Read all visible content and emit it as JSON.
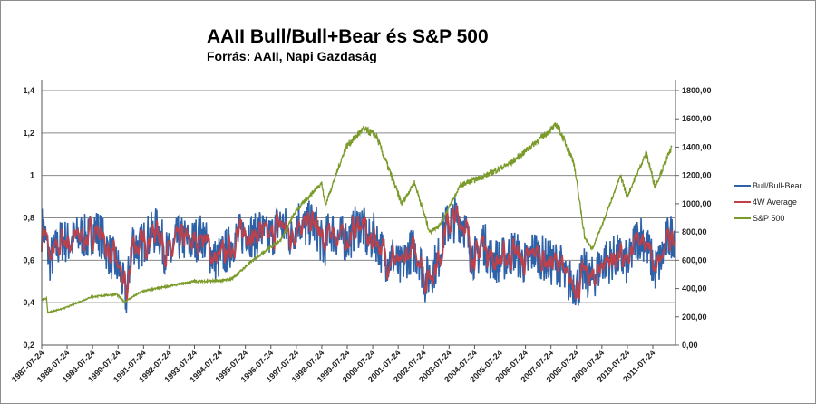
{
  "chart_data": {
    "type": "line",
    "title": "AAII Bull/Bull+Bear és S&P 500",
    "subtitle": "Forrás: AAII, Napi Gazdaság",
    "y_left": {
      "ylim": [
        0.2,
        1.4
      ],
      "ticks": [
        "0,2",
        "0,4",
        "0,6",
        "0,8",
        "1",
        "1,2",
        "1,4"
      ],
      "tick_values": [
        0.2,
        0.4,
        0.6,
        0.8,
        1.0,
        1.2,
        1.4
      ]
    },
    "y_right": {
      "ylim": [
        0,
        1800
      ],
      "ticks": [
        "0,00",
        "200,00",
        "400,00",
        "600,00",
        "800,00",
        "1000,00",
        "1200,00",
        "1400,00",
        "1600,00",
        "1800,00"
      ],
      "tick_values": [
        0,
        200,
        400,
        600,
        800,
        1000,
        1200,
        1400,
        1600,
        1800
      ]
    },
    "x_ticks": [
      "1987-07-24",
      "1988-07-24",
      "1989-07-24",
      "1990-07-24",
      "1991-07-24",
      "1992-07-24",
      "1993-07-24",
      "1994-07-24",
      "1995-07-24",
      "1996-07-24",
      "1997-07-24",
      "1998-07-24",
      "1999-07-24",
      "2000-07-24",
      "2001-07-24",
      "2002-07-24",
      "2003-07-24",
      "2004-07-24",
      "2005-07-24",
      "2006-07-24",
      "2007-07-24",
      "2008-07-24",
      "2009-07-24",
      "2010-07-24",
      "2011-07-24"
    ],
    "x_range": [
      1987.56,
      2012.45
    ],
    "grid": true,
    "legend": {
      "placement": "right",
      "entries": [
        "Bull/Bull-Bear",
        "4W Average",
        "S&P 500"
      ]
    },
    "series": [
      {
        "name": "Bull/Bull-Bear",
        "axis": "left",
        "color": "#2e62a8",
        "note": "weekly, approx. quarterly mean levels with weekly fluctuation"
      },
      {
        "name": "4W Average",
        "axis": "left",
        "color": "#c0404a",
        "x_start": 1987.625,
        "x_step": 0.25,
        "values": [
          0.75,
          0.6,
          0.65,
          0.7,
          0.68,
          0.7,
          0.72,
          0.7,
          0.75,
          0.72,
          0.65,
          0.6,
          0.55,
          0.42,
          0.7,
          0.65,
          0.7,
          0.72,
          0.75,
          0.65,
          0.62,
          0.7,
          0.7,
          0.68,
          0.7,
          0.72,
          0.65,
          0.6,
          0.62,
          0.65,
          0.7,
          0.72,
          0.75,
          0.7,
          0.75,
          0.7,
          0.72,
          0.78,
          0.75,
          0.7,
          0.8,
          0.75,
          0.78,
          0.75,
          0.65,
          0.75,
          0.72,
          0.7,
          0.7,
          0.75,
          0.78,
          0.68,
          0.72,
          0.65,
          0.6,
          0.62,
          0.55,
          0.62,
          0.65,
          0.62,
          0.5,
          0.55,
          0.6,
          0.75,
          0.78,
          0.8,
          0.78,
          0.65,
          0.6,
          0.7,
          0.62,
          0.6,
          0.6,
          0.62,
          0.65,
          0.6,
          0.58,
          0.65,
          0.62,
          0.6,
          0.58,
          0.6,
          0.5,
          0.5,
          0.48,
          0.55,
          0.5,
          0.55,
          0.6,
          0.6,
          0.62,
          0.6,
          0.58,
          0.7,
          0.72,
          0.65,
          0.55,
          0.6,
          0.7,
          0.72
        ]
      },
      {
        "name": "S&P 500",
        "axis": "right",
        "color": "#7a9a2a",
        "points": [
          [
            1987.56,
            320
          ],
          [
            1987.75,
            330
          ],
          [
            1987.8,
            230
          ],
          [
            1988.5,
            265
          ],
          [
            1989.5,
            340
          ],
          [
            1990.5,
            360
          ],
          [
            1990.8,
            305
          ],
          [
            1991.5,
            380
          ],
          [
            1992.5,
            415
          ],
          [
            1993.5,
            450
          ],
          [
            1994.5,
            455
          ],
          [
            1995.0,
            465
          ],
          [
            1995.95,
            615
          ],
          [
            1996.95,
            745
          ],
          [
            1997.55,
            950
          ],
          [
            1998.55,
            1150
          ],
          [
            1998.7,
            990
          ],
          [
            1999.5,
            1400
          ],
          [
            2000.2,
            1530
          ],
          [
            2000.7,
            1480
          ],
          [
            2001.7,
            1000
          ],
          [
            2002.2,
            1150
          ],
          [
            2002.8,
            800
          ],
          [
            2003.2,
            850
          ],
          [
            2004.0,
            1130
          ],
          [
            2005.0,
            1200
          ],
          [
            2006.0,
            1290
          ],
          [
            2007.8,
            1560
          ],
          [
            2008.45,
            1300
          ],
          [
            2008.9,
            750
          ],
          [
            2009.2,
            680
          ],
          [
            2010.3,
            1200
          ],
          [
            2010.55,
            1050
          ],
          [
            2011.3,
            1360
          ],
          [
            2011.65,
            1120
          ],
          [
            2012.3,
            1400
          ]
        ]
      }
    ]
  }
}
